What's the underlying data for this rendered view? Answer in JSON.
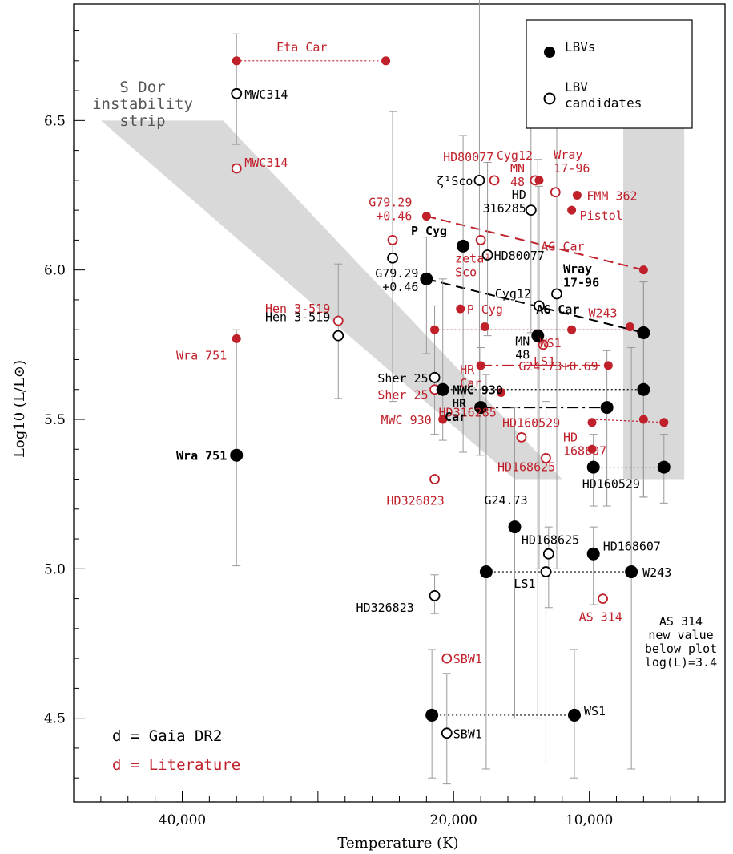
{
  "chart_data": {
    "type": "scatter",
    "xlabel": "Temperature (K)",
    "ylabel": "Log10 (L/L⊙)",
    "xlim": [
      48000,
      0
    ],
    "ylim": [
      4.22,
      6.89
    ],
    "x_ticks": [
      "40,000",
      "20,000",
      "10,000"
    ],
    "y_ticks": [
      "4.5",
      "5.0",
      "5.5",
      "6.0",
      "6.5"
    ],
    "colors": {
      "gaia": "#000000",
      "literature": "#c0202a",
      "strip": "#d9d9d9",
      "errorbar": "#999999"
    },
    "legend": {
      "position": "top-right",
      "entries": [
        "LBVs",
        "LBV\ncandidates"
      ]
    },
    "footnote_labels": [
      "d = Gaia DR2",
      "d = Literature"
    ],
    "region": {
      "label": "S Dor\ninstability\nstrip"
    },
    "annotation": "AS 314\nnew value\nbelow plot\nlog(L)=3.4",
    "points_gaia": [
      {
        "name": "MWC314",
        "x": 36000,
        "y": 6.59,
        "lbv": false,
        "err": [
          6.42,
          6.79
        ]
      },
      {
        "name": "Wra 751",
        "x": 36000,
        "y": 5.38,
        "lbv": true,
        "err": [
          5.01,
          5.8
        ]
      },
      {
        "name": "Hen 3-519",
        "x": 28500,
        "y": 5.78,
        "lbv": false,
        "err": [
          5.57,
          6.02
        ]
      },
      {
        "name": "G79.29\n+0.46",
        "x": 22000,
        "y": 5.97,
        "lbv": true,
        "err": [
          5.72,
          6.11
        ]
      },
      {
        "name": "",
        "x": 24500,
        "y": 6.04,
        "lbv": false,
        "err": [
          5.56,
          6.53
        ]
      },
      {
        "name": "Sher 25",
        "x": 21400,
        "y": 5.64,
        "lbv": false,
        "err": [
          5.45,
          5.88
        ]
      },
      {
        "name": "MWC 930",
        "x": 20800,
        "y": 5.6,
        "lbv": true,
        "err": [
          5.43,
          5.97
        ]
      },
      {
        "name": "ζ¹Sco",
        "x": 18100,
        "y": 6.3,
        "lbv": false,
        "err": [
          5.38,
          6.92
        ]
      },
      {
        "name": "P Cyg",
        "x": 19300,
        "y": 6.08,
        "lbv": true,
        "err": [
          5.39,
          6.45
        ]
      },
      {
        "name": "HD80077",
        "x": 17500,
        "y": 6.05,
        "lbv": false,
        "err": [
          5.78,
          6.36
        ]
      },
      {
        "name": "HR\nCar",
        "x": 18000,
        "y": 5.54,
        "lbv": true,
        "err": [
          5.38,
          5.74
        ]
      },
      {
        "name": "HD\n316285",
        "x": 14300,
        "y": 6.2,
        "lbv": false,
        "err": [
          5.79,
          6.63
        ]
      },
      {
        "name": "Cyg12",
        "x": 13700,
        "y": 5.88,
        "lbv": false,
        "err": [
          5.0,
          6.28
        ]
      },
      {
        "name": "Wray\n17-96",
        "x": 12400,
        "y": 5.92,
        "lbv": false,
        "err": [
          5.0,
          6.68
        ]
      },
      {
        "name": "MN\n48",
        "x": 13800,
        "y": 5.78,
        "lbv": true,
        "err": [
          4.5,
          6.37
        ]
      },
      {
        "name": "G24.73",
        "x": 15500,
        "y": 5.14,
        "lbv": true,
        "err": [
          4.5,
          5.54
        ]
      },
      {
        "name": "HD168625",
        "x": 13000,
        "y": 5.05,
        "lbv": false,
        "err": [
          4.87,
          5.14
        ]
      },
      {
        "name": "LS1",
        "x": 13200,
        "y": 4.99,
        "lbv": false,
        "err": [
          4.35,
          5.56
        ]
      },
      {
        "name": "",
        "x": 17600,
        "y": 4.99,
        "lbv": true,
        "err": [
          4.33,
          5.65
        ]
      },
      {
        "name": "HD326823",
        "x": 21400,
        "y": 4.91,
        "lbv": false,
        "err": [
          4.85,
          4.98
        ]
      },
      {
        "name": "",
        "x": 21600,
        "y": 4.51,
        "lbv": true,
        "err": [
          4.3,
          4.73
        ]
      },
      {
        "name": "SBW1",
        "x": 20500,
        "y": 4.45,
        "lbv": false,
        "err": [
          4.28,
          4.65
        ]
      },
      {
        "name": "WS1",
        "x": 11100,
        "y": 4.51,
        "lbv": true,
        "err": [
          4.3,
          4.73
        ]
      },
      {
        "name": "HD168607",
        "x": 9700,
        "y": 5.05,
        "lbv": true,
        "err": [
          4.88,
          5.14
        ]
      },
      {
        "name": "W243",
        "x": 6900,
        "y": 4.99,
        "lbv": true,
        "err": [
          4.33,
          5.74
        ]
      },
      {
        "name": "HD160529",
        "x": 9700,
        "y": 5.34,
        "lbv": true,
        "err": [
          5.21,
          5.45
        ]
      },
      {
        "name": "",
        "x": 8700,
        "y": 5.54,
        "lbv": true,
        "err": [
          5.21,
          5.73
        ]
      },
      {
        "name": "AG Car",
        "x": 6000,
        "y": 5.79,
        "lbv": true,
        "err": [
          5.24,
          5.96
        ]
      },
      {
        "name": "",
        "x": 6000,
        "y": 5.6,
        "lbv": true,
        "err": [
          5.24,
          5.96
        ]
      },
      {
        "name": "",
        "x": 4500,
        "y": 5.34,
        "lbv": true,
        "err": [
          5.22,
          5.45
        ]
      }
    ],
    "points_literature": [
      {
        "name": "Eta Car",
        "x": 36000,
        "y": 6.7,
        "lbv": true
      },
      {
        "name": "",
        "x": 25000,
        "y": 6.7,
        "lbv": true
      },
      {
        "name": "MWC314",
        "x": 36000,
        "y": 6.34,
        "lbv": false
      },
      {
        "name": "Wra 751",
        "x": 36000,
        "y": 5.77,
        "lbv": true
      },
      {
        "name": "Hen 3-519",
        "x": 28500,
        "y": 5.83,
        "lbv": false
      },
      {
        "name": "G79.29\n+0.46",
        "x": 22000,
        "y": 6.18,
        "lbv": true
      },
      {
        "name": "",
        "x": 24500,
        "y": 6.1,
        "lbv": false
      },
      {
        "name": "Sher 25",
        "x": 21400,
        "y": 5.6,
        "lbv": false
      },
      {
        "name": "MWC 930",
        "x": 20800,
        "y": 5.5,
        "lbv": true
      },
      {
        "name": "HD326823",
        "x": 21400,
        "y": 5.3,
        "lbv": false
      },
      {
        "name": "SBW1",
        "x": 20500,
        "y": 4.7,
        "lbv": false
      },
      {
        "name": "HD80077",
        "x": 17000,
        "y": 6.3,
        "lbv": false
      },
      {
        "name": "zeta¹\nSco",
        "x": 18000,
        "y": 6.1,
        "lbv": false
      },
      {
        "name": "P Cyg",
        "x": 19500,
        "y": 5.87,
        "lbv": true
      },
      {
        "name": "",
        "x": 21400,
        "y": 5.8,
        "lbv": true
      },
      {
        "name": "",
        "x": 17700,
        "y": 5.81,
        "lbv": true
      },
      {
        "name": "HR\nCar",
        "x": 18000,
        "y": 5.68,
        "lbv": true
      },
      {
        "name": "HD316285",
        "x": 16500,
        "y": 5.59,
        "lbv": true
      },
      {
        "name": "Cyg12",
        "x": 14000,
        "y": 6.3,
        "lbv": false
      },
      {
        "name": "MN\n48",
        "x": 13700,
        "y": 6.3,
        "lbv": true
      },
      {
        "name": "Wray\n17-96",
        "x": 12500,
        "y": 6.26,
        "lbv": false
      },
      {
        "name": "FMM 362",
        "x": 10900,
        "y": 6.25,
        "lbv": true
      },
      {
        "name": "Pistol",
        "x": 11300,
        "y": 6.2,
        "lbv": true
      },
      {
        "name": "AG Car",
        "x": 6000,
        "y": 6.0,
        "lbv": true
      },
      {
        "name": "W243",
        "x": 7000,
        "y": 5.81,
        "lbv": true
      },
      {
        "name": "WS1",
        "x": 11300,
        "y": 5.8,
        "lbv": true
      },
      {
        "name": "LS1",
        "x": 13400,
        "y": 5.75,
        "lbv": false
      },
      {
        "name": "G24.73+0.69",
        "x": 8600,
        "y": 5.68,
        "lbv": true
      },
      {
        "name": "HD168625",
        "x": 15000,
        "y": 5.44,
        "lbv": false
      },
      {
        "name": "",
        "x": 13200,
        "y": 5.37,
        "lbv": false
      },
      {
        "name": "HD160529",
        "x": 9800,
        "y": 5.49,
        "lbv": true
      },
      {
        "name": "",
        "x": 6000,
        "y": 5.5,
        "lbv": true
      },
      {
        "name": "",
        "x": 4500,
        "y": 5.49,
        "lbv": true
      },
      {
        "name": "HD\n168607",
        "x": 9800,
        "y": 5.4,
        "lbv": true
      },
      {
        "name": "AS 314",
        "x": 9000,
        "y": 4.9,
        "lbv": false
      }
    ]
  }
}
